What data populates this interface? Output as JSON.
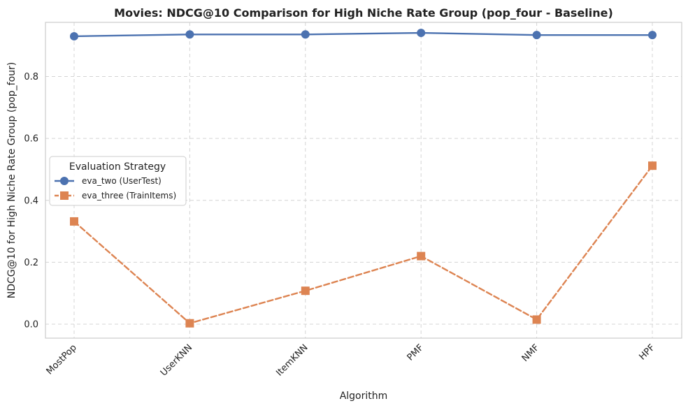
{
  "chart_data": {
    "type": "line",
    "title": "Movies: NDCG@10 Comparison for High Niche Rate Group (pop_four - Baseline)",
    "xlabel": "Algorithm",
    "ylabel": "NDCG@10 for High Niche Rate Group (pop_four)",
    "categories": [
      "MostPop",
      "UserKNN",
      "ItemKNN",
      "PMF",
      "NMF",
      "HPF"
    ],
    "ylim": [
      -0.045,
      0.975
    ],
    "yticks": [
      0.0,
      0.2,
      0.4,
      0.6,
      0.8
    ],
    "ytick_labels": [
      "0.0",
      "0.2",
      "0.4",
      "0.6",
      "0.8"
    ],
    "grid": true,
    "legend": {
      "title": "Evaluation Strategy",
      "position": "center-left"
    },
    "series": [
      {
        "name": "eva_two (UserTest)",
        "values": [
          0.93,
          0.936,
          0.936,
          0.941,
          0.934,
          0.934
        ],
        "color": "#4c72b0",
        "marker": "circle",
        "linestyle": "solid"
      },
      {
        "name": "eva_three (TrainItems)",
        "values": [
          0.332,
          0.003,
          0.108,
          0.22,
          0.015,
          0.512
        ],
        "color": "#dd8452",
        "marker": "square",
        "linestyle": "dashed"
      }
    ]
  }
}
